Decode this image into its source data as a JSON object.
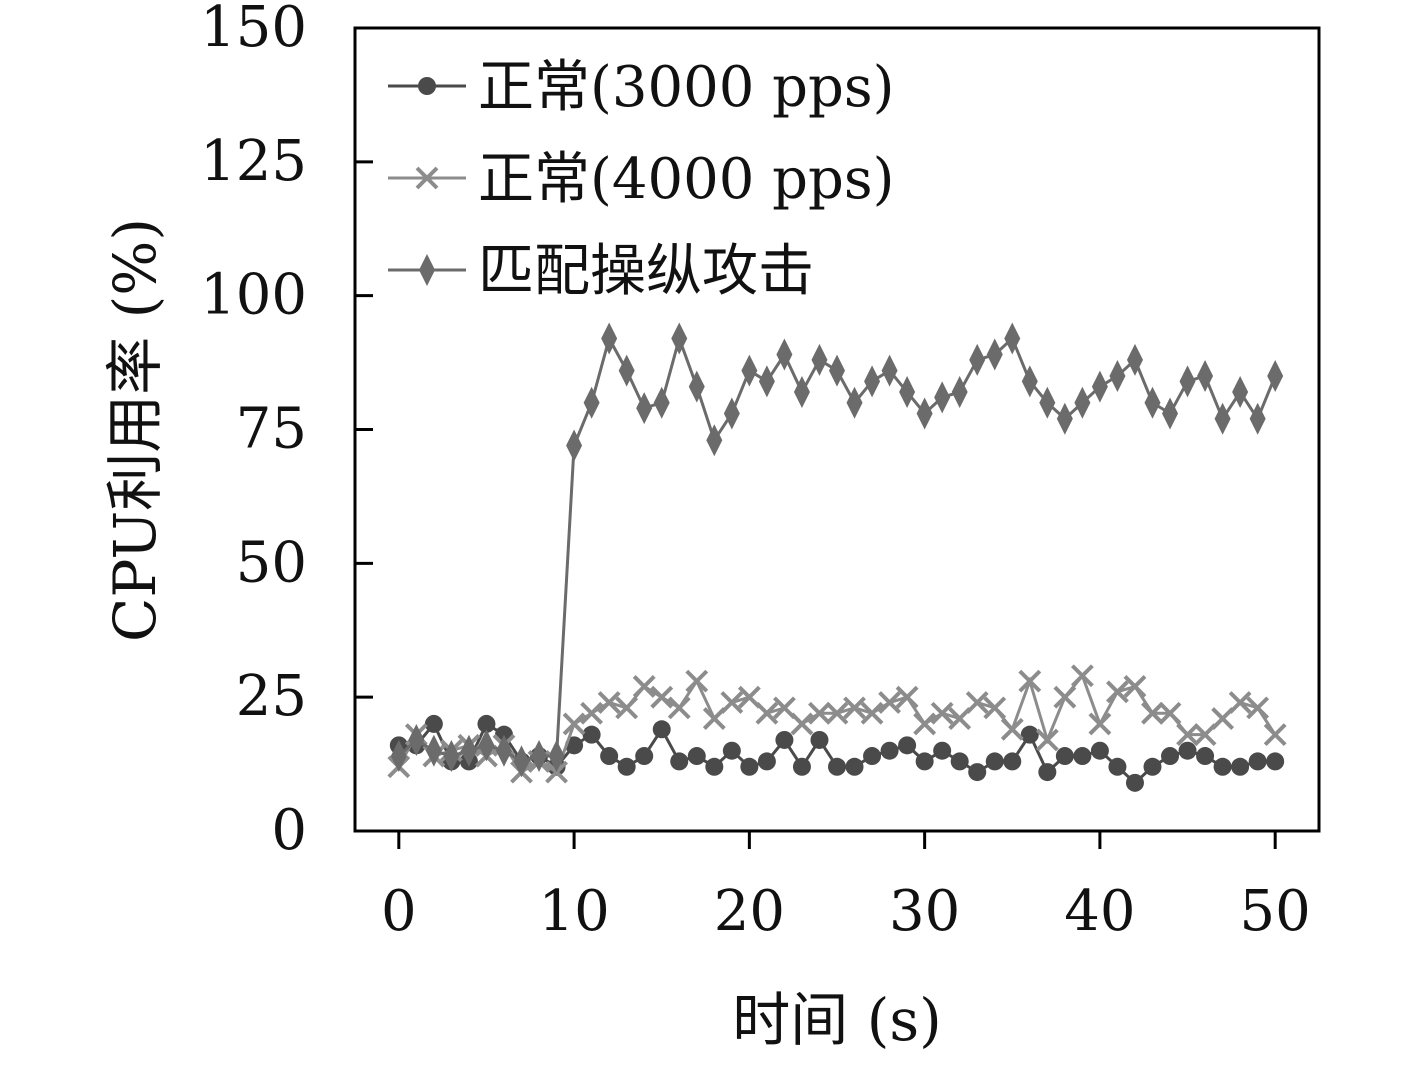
{
  "chart_data": {
    "type": "line",
    "xlabel": "时间 (s)",
    "ylabel": "CPU利用率 (%)",
    "xlim": [
      -2.5,
      52.5
    ],
    "ylim": [
      0,
      150
    ],
    "xticks": [
      0,
      10,
      20,
      30,
      40,
      50
    ],
    "yticks": [
      0,
      25,
      50,
      75,
      100,
      125,
      150
    ],
    "grid": false,
    "legend_position": "top-left",
    "x": [
      0,
      1,
      2,
      3,
      4,
      5,
      6,
      7,
      8,
      9,
      10,
      11,
      12,
      13,
      14,
      15,
      16,
      17,
      18,
      19,
      20,
      21,
      22,
      23,
      24,
      25,
      26,
      27,
      28,
      29,
      30,
      31,
      32,
      33,
      34,
      35,
      36,
      37,
      38,
      39,
      40,
      41,
      42,
      43,
      44,
      45,
      46,
      47,
      48,
      49,
      50
    ],
    "series": [
      {
        "name": "正常(3000 pps)",
        "marker": "circle",
        "color": "#4a4a4a",
        "values": [
          16,
          16,
          20,
          13,
          13,
          20,
          18,
          13,
          14,
          12,
          16,
          18,
          14,
          12,
          14,
          19,
          13,
          14,
          12,
          15,
          12,
          13,
          17,
          12,
          17,
          12,
          12,
          14,
          15,
          16,
          13,
          15,
          13,
          11,
          13,
          13,
          18,
          11,
          14,
          14,
          15,
          12,
          9,
          12,
          14,
          15,
          14,
          12,
          12,
          13,
          13
        ]
      },
      {
        "name": "正常(4000 pps)",
        "marker": "x",
        "color": "#8c8c8c",
        "values": [
          12,
          18,
          14,
          15,
          16,
          14,
          16,
          11,
          13,
          11,
          20,
          22,
          24,
          23,
          27,
          25,
          23,
          28,
          21,
          24,
          25,
          22,
          23,
          20,
          22,
          22,
          23,
          22,
          24,
          25,
          20,
          22,
          21,
          24,
          23,
          19,
          28,
          17,
          25,
          29,
          20,
          26,
          27,
          22,
          22,
          18,
          18,
          21,
          24,
          23,
          18
        ]
      },
      {
        "name": "匹配操纵攻击",
        "marker": "diamond",
        "color": "#6b6b6b",
        "values": [
          14,
          17,
          15,
          14,
          15,
          16,
          15,
          13,
          14,
          14,
          72,
          80,
          92,
          86,
          79,
          80,
          92,
          83,
          73,
          78,
          86,
          84,
          89,
          82,
          88,
          86,
          80,
          84,
          86,
          82,
          78,
          81,
          82,
          88,
          89,
          92,
          84,
          80,
          77,
          80,
          83,
          85,
          88,
          80,
          78,
          84,
          85,
          77,
          82,
          77,
          85
        ]
      }
    ]
  }
}
